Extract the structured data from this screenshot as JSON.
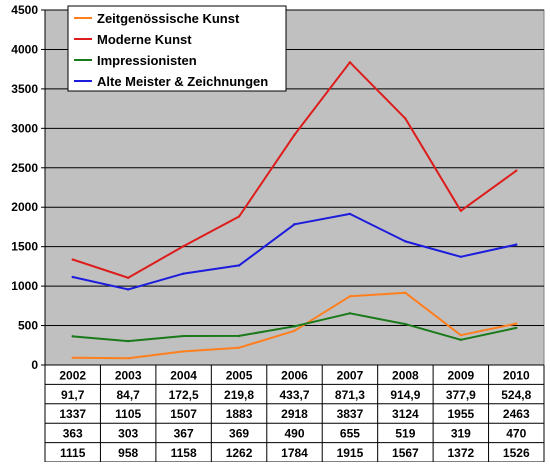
{
  "chart_data": {
    "type": "line",
    "categories": [
      "2002",
      "2003",
      "2004",
      "2005",
      "2006",
      "2007",
      "2008",
      "2009",
      "2010"
    ],
    "ylim": [
      0,
      4500
    ],
    "yticks": [
      "0",
      "500",
      "1000",
      "1500",
      "2000",
      "2500",
      "3000",
      "3500",
      "4000",
      "4500"
    ],
    "grid": true,
    "legend_position": "top-left",
    "series": [
      {
        "name": "Zeitgenössische Kunst",
        "color": "#ff7f1e",
        "values": [
          91.7,
          84.7,
          172.5,
          219.8,
          433.7,
          871.3,
          914.9,
          377.9,
          524.8
        ],
        "labels": [
          "91,7",
          "84,7",
          "172,5",
          "219,8",
          "433,7",
          "871,3",
          "914,9",
          "377,9",
          "524,8"
        ]
      },
      {
        "name": "Moderne Kunst",
        "color": "#dd1c1c",
        "values": [
          1337,
          1105,
          1507,
          1883,
          2918,
          3837,
          3124,
          1955,
          2463
        ],
        "labels": [
          "1337",
          "1105",
          "1507",
          "1883",
          "2918",
          "3837",
          "3124",
          "1955",
          "2463"
        ]
      },
      {
        "name": "Impressionisten",
        "color": "#1a7a1a",
        "values": [
          363,
          303,
          367,
          369,
          490,
          655,
          519,
          319,
          470
        ],
        "labels": [
          "363",
          "303",
          "367",
          "369",
          "490",
          "655",
          "519",
          "319",
          "470"
        ]
      },
      {
        "name": "Alte Meister & Zeichnungen",
        "color": "#1c1cdd",
        "values": [
          1115,
          958,
          1158,
          1262,
          1784,
          1915,
          1567,
          1372,
          1526
        ],
        "labels": [
          "1115",
          "958",
          "1158",
          "1262",
          "1784",
          "1915",
          "1567",
          "1372",
          "1526"
        ]
      }
    ]
  },
  "style": {
    "plot_background": "#c0c0c0",
    "grid_color": "#000000"
  }
}
